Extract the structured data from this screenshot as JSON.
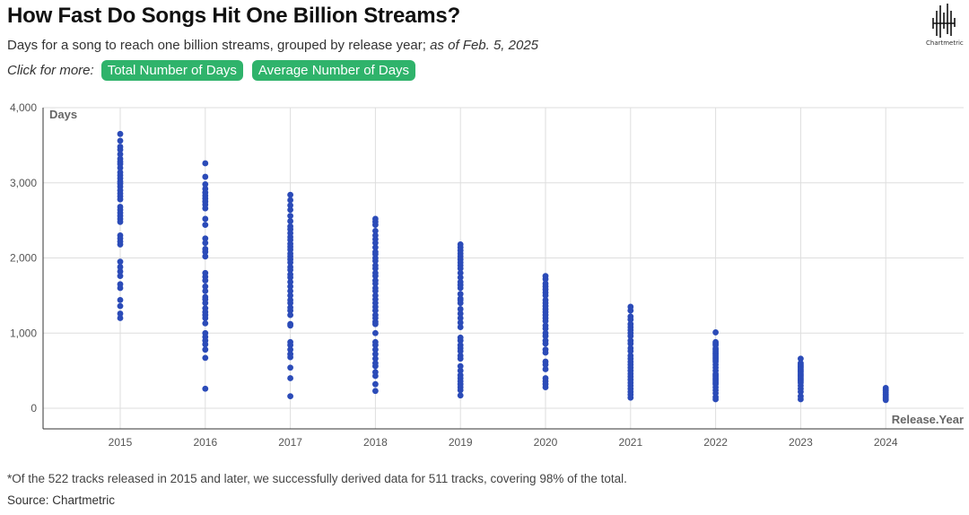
{
  "header": {
    "title": "How Fast Do Songs Hit One Billion Streams?",
    "subtitle_main": "Days for a song to reach one billion streams, grouped by release year;",
    "subtitle_italic": "as of Feb. 5, 2025",
    "click_label": "Click for more:",
    "buttons": [
      "Total Number of Days",
      "Average Number of Days"
    ],
    "button_color": "#2fb36b"
  },
  "logo": {
    "name": "Chartmetric",
    "icon": "chartmetric-waveform-icon"
  },
  "chart_data": {
    "type": "scatter",
    "title": "How Fast Do Songs Hit One Billion Streams?",
    "xlabel": "Release.Year",
    "ylabel": "Days",
    "categories": [
      "2015",
      "2016",
      "2017",
      "2018",
      "2019",
      "2020",
      "2021",
      "2022",
      "2023",
      "2024"
    ],
    "y_ticks": [
      0,
      1000,
      2000,
      3000,
      4000
    ],
    "y_tick_labels": [
      "0",
      "1,000",
      "2,000",
      "3,000",
      "4,000"
    ],
    "ylim": [
      0,
      4000
    ],
    "grid": true,
    "point_color": "#2b4bb8",
    "series": [
      {
        "x": "2015",
        "values": [
          3650,
          3560,
          3480,
          3440,
          3380,
          3320,
          3280,
          3250,
          3200,
          3140,
          3100,
          3060,
          3020,
          2990,
          2950,
          2900,
          2860,
          2820,
          2780,
          2680,
          2640,
          2600,
          2560,
          2520,
          2480,
          2300,
          2260,
          2220,
          2180,
          1950,
          1880,
          1820,
          1760,
          1650,
          1600,
          1440,
          1360,
          1260,
          1200
        ]
      },
      {
        "x": "2016",
        "values": [
          3260,
          3080,
          2980,
          2920,
          2870,
          2830,
          2790,
          2750,
          2710,
          2660,
          2520,
          2440,
          2260,
          2200,
          2120,
          2080,
          2020,
          1800,
          1750,
          1700,
          1620,
          1560,
          1480,
          1450,
          1400,
          1330,
          1280,
          1240,
          1200,
          1130,
          1000,
          950,
          900,
          850,
          780,
          670,
          260
        ]
      },
      {
        "x": "2017",
        "values": [
          2840,
          2770,
          2700,
          2640,
          2560,
          2490,
          2420,
          2380,
          2330,
          2280,
          2240,
          2190,
          2150,
          2110,
          2060,
          2020,
          1980,
          1940,
          1880,
          1840,
          1780,
          1740,
          1680,
          1620,
          1560,
          1500,
          1440,
          1400,
          1340,
          1300,
          1240,
          1120,
          1100,
          880,
          840,
          780,
          720,
          680,
          540,
          400,
          160
        ]
      },
      {
        "x": "2018",
        "values": [
          2520,
          2480,
          2440,
          2360,
          2300,
          2250,
          2200,
          2140,
          2080,
          2050,
          2000,
          1960,
          1900,
          1860,
          1800,
          1760,
          1700,
          1660,
          1600,
          1560,
          1500,
          1450,
          1400,
          1350,
          1300,
          1240,
          1200,
          1150,
          1120,
          1000,
          880,
          840,
          780,
          720,
          660,
          600,
          560,
          480,
          430,
          320,
          230
        ]
      },
      {
        "x": "2019",
        "values": [
          2180,
          2140,
          2100,
          2060,
          2020,
          1980,
          1940,
          1900,
          1860,
          1800,
          1740,
          1680,
          1640,
          1600,
          1520,
          1460,
          1440,
          1400,
          1320,
          1260,
          1200,
          1140,
          1080,
          940,
          900,
          840,
          800,
          760,
          700,
          660,
          560,
          500,
          440,
          400,
          360,
          320,
          280,
          240,
          170
        ]
      },
      {
        "x": "2020",
        "values": [
          1760,
          1720,
          1660,
          1620,
          1580,
          1540,
          1500,
          1440,
          1400,
          1360,
          1320,
          1280,
          1240,
          1200,
          1160,
          1100,
          1060,
          1000,
          960,
          900,
          860,
          780,
          740,
          620,
          580,
          520,
          400,
          360,
          320,
          280
        ]
      },
      {
        "x": "2021",
        "values": [
          1350,
          1300,
          1220,
          1180,
          1120,
          1080,
          1040,
          1000,
          960,
          900,
          860,
          800,
          760,
          700,
          660,
          620,
          580,
          540,
          500,
          460,
          420,
          380,
          340,
          300,
          260,
          220,
          180,
          140
        ]
      },
      {
        "x": "2022",
        "values": [
          1010,
          880,
          860,
          840,
          800,
          780,
          760,
          740,
          720,
          700,
          680,
          660,
          640,
          620,
          580,
          540,
          500,
          460,
          440,
          420,
          400,
          380,
          360,
          340,
          320,
          280,
          240,
          200,
          150,
          120
        ]
      },
      {
        "x": "2023",
        "values": [
          660,
          600,
          580,
          560,
          540,
          520,
          500,
          480,
          460,
          440,
          420,
          400,
          380,
          360,
          340,
          300,
          260,
          220,
          160,
          120
        ]
      },
      {
        "x": "2024",
        "values": [
          270,
          250,
          230,
          210,
          190,
          170,
          150,
          130,
          110
        ]
      }
    ]
  },
  "footnote": "*Of the 522 tracks released in 2015 and later, we successfully derived data for 511 tracks, covering 98% of the total.",
  "source": "Source: Chartmetric"
}
